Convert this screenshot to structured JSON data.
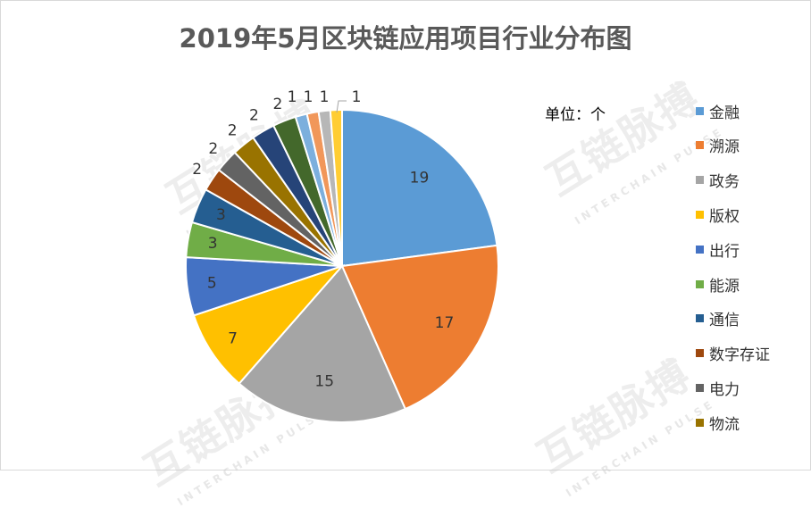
{
  "chart_data": {
    "type": "pie",
    "title": "2019年5月区块链应用项目行业分布图",
    "unit_label": "单位：个",
    "start_angle_deg": 0,
    "direction": "clockwise",
    "slices": [
      {
        "label": "金融",
        "value": 19,
        "color": "#5b9bd5"
      },
      {
        "label": "溯源",
        "value": 17,
        "color": "#ed7d31"
      },
      {
        "label": "政务",
        "value": 15,
        "color": "#a5a5a5"
      },
      {
        "label": "版权",
        "value": 7,
        "color": "#ffc000"
      },
      {
        "label": "出行",
        "value": 5,
        "color": "#4472c4"
      },
      {
        "label": "能源",
        "value": 3,
        "color": "#70ad47"
      },
      {
        "label": "通信",
        "value": 3,
        "color": "#255e91"
      },
      {
        "label": "数字存证",
        "value": 2,
        "color": "#9e480e"
      },
      {
        "label": "电力",
        "value": 2,
        "color": "#636363"
      },
      {
        "label": "物流",
        "value": 2,
        "color": "#997300"
      },
      {
        "label": "",
        "value": 2,
        "color": "#264478"
      },
      {
        "label": "",
        "value": 2,
        "color": "#43682b"
      },
      {
        "label": "",
        "value": 1,
        "color": "#7cafdd"
      },
      {
        "label": "",
        "value": 1,
        "color": "#f1975a"
      },
      {
        "label": "",
        "value": 1,
        "color": "#b7b7b7"
      },
      {
        "label": "",
        "value": 1,
        "color": "#ffcd33"
      }
    ],
    "legend": [
      "金融",
      "溯源",
      "政务",
      "版权",
      "出行",
      "能源",
      "通信",
      "数字存证",
      "电力",
      "物流"
    ],
    "legend_position": "right"
  },
  "watermark": {
    "text": "互链脉搏",
    "sub": "INTERCHAIN PULSE"
  }
}
